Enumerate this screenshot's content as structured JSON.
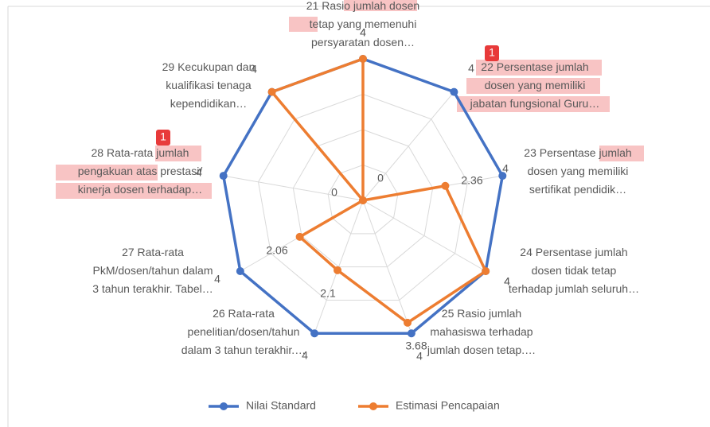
{
  "chart_data": {
    "type": "radar",
    "categories": [
      "21 Rasio jumlah dosen\ntetap yang memenuhi\npersyaratan dosen…",
      "22 Persentase jumlah\ndosen yang memiliki\njabatan fungsional Guru…",
      "23 Persentase jumlah\ndosen yang memiliki\nsertifikat pendidik…",
      "24 Persentase jumlah\ndosen tidak tetap\nterhadap jumlah seluruh…",
      "25 Rasio jumlah\nmahasiswa terhadap\njumlah dosen tetap.…",
      "26 Rata-rata\npenelitian/dosen/tahun\ndalam 3 tahun terakhir.…",
      "27 Rata-rata\nPkM/dosen/tahun dalam\n3 tahun terakhir. Tabel…",
      "28 Rata-rata jumlah\npengakuan atas prestasi/\nkinerja dosen terhadap…",
      "29 Kecukupan dan\nkualifikasi tenaga\nkependidikan…"
    ],
    "series": [
      {
        "name": "Nilai Standard",
        "color": "#4472c4",
        "values": [
          4,
          4,
          4,
          4,
          4,
          4,
          4,
          4,
          4
        ]
      },
      {
        "name": "Estimasi Pencapaian",
        "color": "#ed7d31",
        "values": [
          4,
          0,
          2.36,
          4,
          3.68,
          2.1,
          2.06,
          0,
          4
        ]
      }
    ],
    "ylim": [
      0,
      4
    ],
    "yticks": [
      1,
      2,
      3,
      4
    ],
    "grid": true
  },
  "badges": [
    "1",
    "1"
  ]
}
